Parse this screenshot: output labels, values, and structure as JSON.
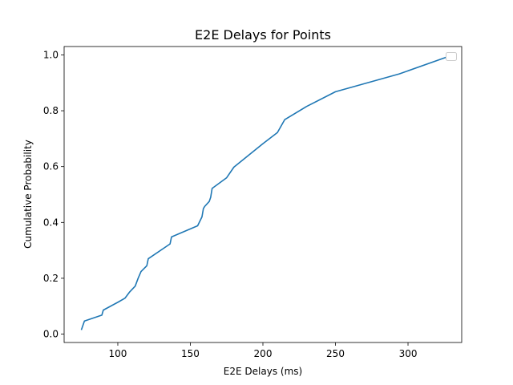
{
  "chart_data": {
    "type": "line",
    "title": "E2E Delays for Points",
    "xlabel": "E2E Delays (ms)",
    "ylabel": "Cumulative Probability",
    "xlim": [
      63,
      337
    ],
    "ylim": [
      -0.03,
      1.03
    ],
    "xticks": [
      100,
      150,
      200,
      250,
      300
    ],
    "xtick_labels": [
      "100",
      "150",
      "200",
      "250",
      "300"
    ],
    "yticks": [
      0.0,
      0.2,
      0.4,
      0.6,
      0.8,
      1.0
    ],
    "ytick_labels": [
      "0.0",
      "0.2",
      "0.4",
      "0.6",
      "0.8",
      "1.0"
    ],
    "grid": false,
    "legend": "top-right",
    "line_color": "#1f77b4",
    "series": [
      {
        "x": [
          75,
          77,
          89,
          90,
          95,
          100,
          105,
          108,
          112,
          114,
          116,
          120,
          121,
          136,
          137,
          155,
          158,
          159,
          160,
          163,
          164,
          165,
          175,
          180,
          190,
          200,
          210,
          215,
          230,
          250,
          294,
          331
        ],
        "y": [
          0.017,
          0.047,
          0.068,
          0.086,
          0.1,
          0.114,
          0.129,
          0.15,
          0.172,
          0.2,
          0.224,
          0.245,
          0.27,
          0.323,
          0.348,
          0.388,
          0.42,
          0.45,
          0.458,
          0.475,
          0.49,
          0.522,
          0.56,
          0.598,
          0.64,
          0.682,
          0.722,
          0.768,
          0.815,
          0.868,
          0.932,
          1.0
        ]
      }
    ]
  }
}
